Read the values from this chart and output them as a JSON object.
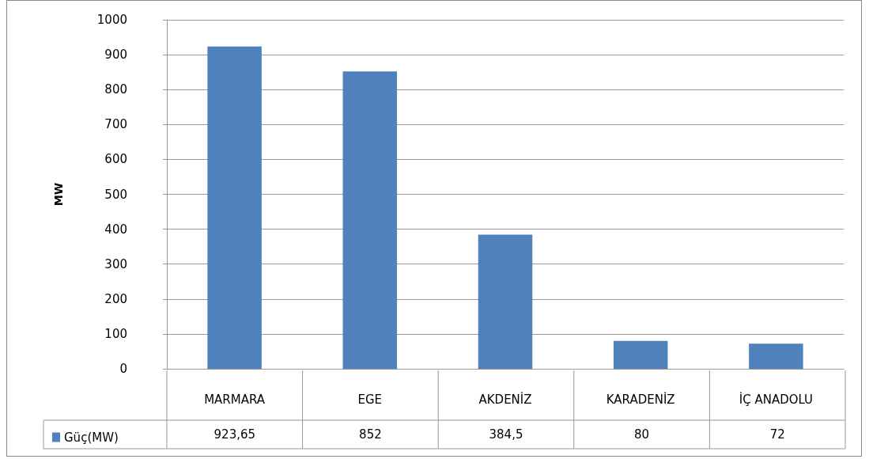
{
  "chart_data": {
    "type": "bar",
    "ylabel": "MW",
    "categories": [
      "MARMARA",
      "EGE",
      "AKDENİZ",
      "KARADENİZ",
      "İÇ ANADOLU"
    ],
    "series": [
      {
        "name": "Güç(MW)",
        "color": "#4f81bd",
        "values": [
          923.65,
          852,
          384.5,
          80,
          72
        ],
        "value_labels": [
          "923,65",
          "852",
          "384,5",
          "80",
          "72"
        ]
      }
    ],
    "ylim": [
      0,
      1000
    ],
    "yticks": [
      0,
      100,
      200,
      300,
      400,
      500,
      600,
      700,
      800,
      900,
      1000
    ],
    "grid": "y",
    "legend": "bottom left"
  }
}
